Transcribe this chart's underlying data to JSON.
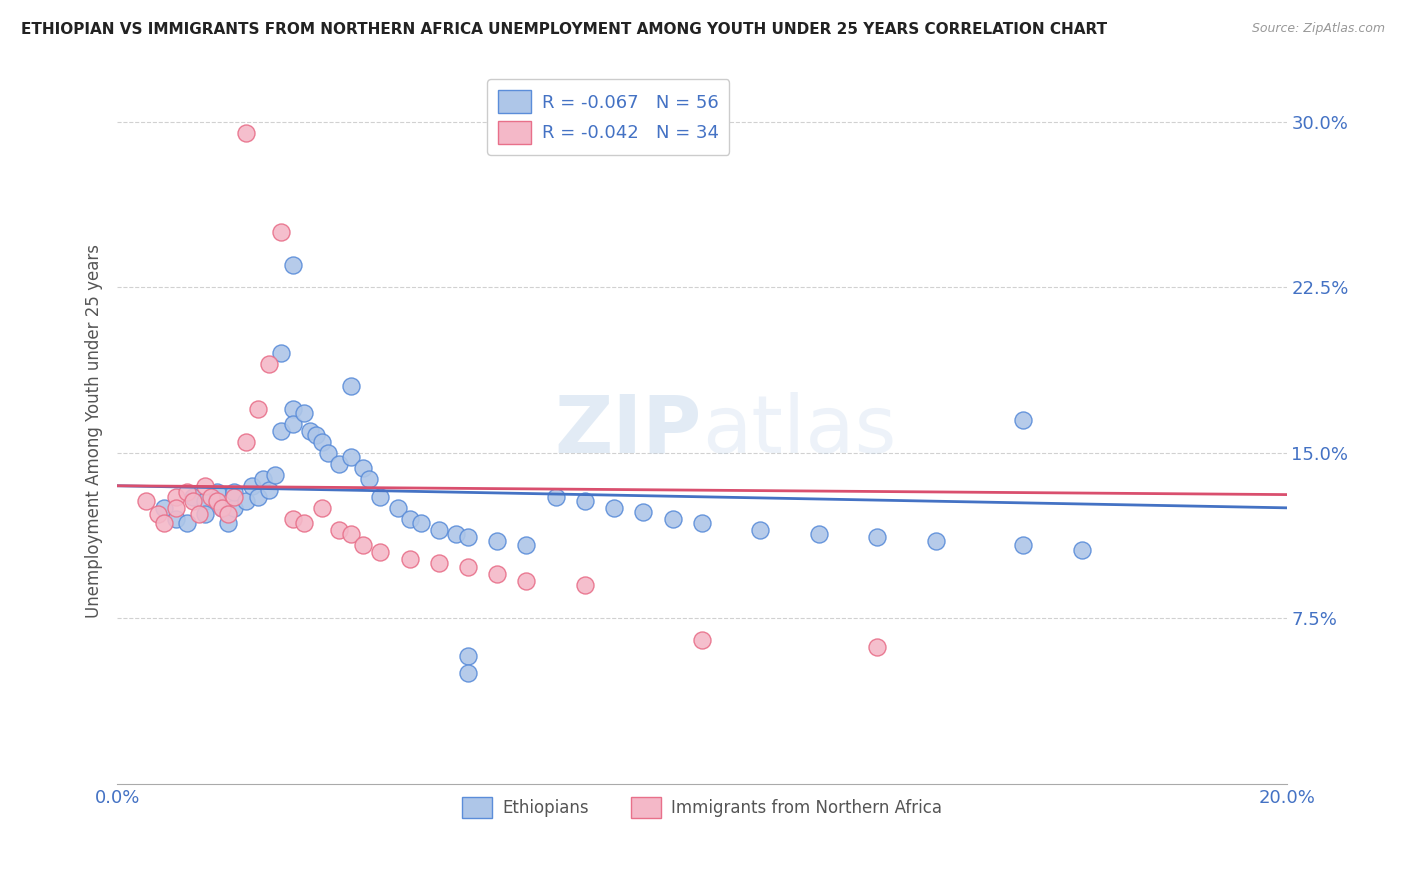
{
  "title": "ETHIOPIAN VS IMMIGRANTS FROM NORTHERN AFRICA UNEMPLOYMENT AMONG YOUTH UNDER 25 YEARS CORRELATION CHART",
  "source": "Source: ZipAtlas.com",
  "ylabel": "Unemployment Among Youth under 25 years",
  "xlim": [
    0.0,
    0.2
  ],
  "ylim": [
    0.0,
    0.32
  ],
  "xticks": [
    0.0,
    0.05,
    0.1,
    0.15,
    0.2
  ],
  "ytick_positions": [
    0.075,
    0.15,
    0.225,
    0.3
  ],
  "yticklabels": [
    "7.5%",
    "15.0%",
    "22.5%",
    "30.0%"
  ],
  "legend_label1": "Ethiopians",
  "legend_label2": "Immigrants from Northern Africa",
  "blue_color": "#aec6e8",
  "pink_color": "#f4b8c8",
  "blue_edge_color": "#5b8dd9",
  "pink_edge_color": "#e8708a",
  "blue_line_color": "#4472c4",
  "pink_line_color": "#d94f6e",
  "background_color": "#ffffff",
  "grid_color": "#cccccc",
  "title_color": "#222222",
  "axis_label_color": "#555555",
  "tick_label_color": "#4472c4",
  "blue_scatter": [
    [
      0.008,
      0.125
    ],
    [
      0.01,
      0.12
    ],
    [
      0.012,
      0.118
    ],
    [
      0.013,
      0.13
    ],
    [
      0.015,
      0.128
    ],
    [
      0.015,
      0.122
    ],
    [
      0.017,
      0.132
    ],
    [
      0.018,
      0.125
    ],
    [
      0.019,
      0.118
    ],
    [
      0.02,
      0.125
    ],
    [
      0.02,
      0.132
    ],
    [
      0.022,
      0.128
    ],
    [
      0.023,
      0.135
    ],
    [
      0.024,
      0.13
    ],
    [
      0.025,
      0.138
    ],
    [
      0.026,
      0.133
    ],
    [
      0.027,
      0.14
    ],
    [
      0.028,
      0.16
    ],
    [
      0.03,
      0.17
    ],
    [
      0.03,
      0.163
    ],
    [
      0.032,
      0.168
    ],
    [
      0.033,
      0.16
    ],
    [
      0.034,
      0.158
    ],
    [
      0.035,
      0.155
    ],
    [
      0.036,
      0.15
    ],
    [
      0.038,
      0.145
    ],
    [
      0.04,
      0.148
    ],
    [
      0.042,
      0.143
    ],
    [
      0.043,
      0.138
    ],
    [
      0.045,
      0.13
    ],
    [
      0.048,
      0.125
    ],
    [
      0.05,
      0.12
    ],
    [
      0.052,
      0.118
    ],
    [
      0.055,
      0.115
    ],
    [
      0.058,
      0.113
    ],
    [
      0.06,
      0.112
    ],
    [
      0.065,
      0.11
    ],
    [
      0.07,
      0.108
    ],
    [
      0.075,
      0.13
    ],
    [
      0.08,
      0.128
    ],
    [
      0.085,
      0.125
    ],
    [
      0.09,
      0.123
    ],
    [
      0.095,
      0.12
    ],
    [
      0.1,
      0.118
    ],
    [
      0.11,
      0.115
    ],
    [
      0.12,
      0.113
    ],
    [
      0.13,
      0.112
    ],
    [
      0.14,
      0.11
    ],
    [
      0.155,
      0.108
    ],
    [
      0.165,
      0.106
    ],
    [
      0.03,
      0.235
    ],
    [
      0.028,
      0.195
    ],
    [
      0.04,
      0.18
    ],
    [
      0.155,
      0.165
    ],
    [
      0.06,
      0.058
    ],
    [
      0.06,
      0.05
    ]
  ],
  "pink_scatter": [
    [
      0.005,
      0.128
    ],
    [
      0.007,
      0.122
    ],
    [
      0.008,
      0.118
    ],
    [
      0.01,
      0.13
    ],
    [
      0.01,
      0.125
    ],
    [
      0.012,
      0.132
    ],
    [
      0.013,
      0.128
    ],
    [
      0.014,
      0.122
    ],
    [
      0.015,
      0.135
    ],
    [
      0.016,
      0.13
    ],
    [
      0.017,
      0.128
    ],
    [
      0.018,
      0.125
    ],
    [
      0.019,
      0.122
    ],
    [
      0.02,
      0.13
    ],
    [
      0.022,
      0.155
    ],
    [
      0.024,
      0.17
    ],
    [
      0.026,
      0.19
    ],
    [
      0.028,
      0.25
    ],
    [
      0.03,
      0.12
    ],
    [
      0.032,
      0.118
    ],
    [
      0.035,
      0.125
    ],
    [
      0.038,
      0.115
    ],
    [
      0.04,
      0.113
    ],
    [
      0.042,
      0.108
    ],
    [
      0.045,
      0.105
    ],
    [
      0.05,
      0.102
    ],
    [
      0.055,
      0.1
    ],
    [
      0.06,
      0.098
    ],
    [
      0.065,
      0.095
    ],
    [
      0.07,
      0.092
    ],
    [
      0.08,
      0.09
    ],
    [
      0.1,
      0.065
    ],
    [
      0.13,
      0.062
    ],
    [
      0.022,
      0.295
    ]
  ]
}
